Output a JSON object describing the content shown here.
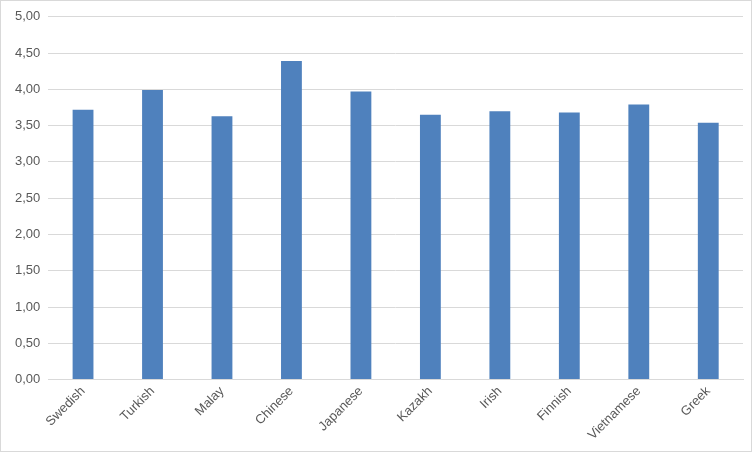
{
  "chart_data": {
    "type": "bar",
    "categories": [
      "Swedish",
      "Turkish",
      "Malay",
      "Chinese",
      "Japanese",
      "Kazakh",
      "Irish",
      "Finnish",
      "Vietnamese",
      "Greek"
    ],
    "values": [
      3.72,
      3.99,
      3.63,
      4.39,
      3.97,
      3.65,
      3.7,
      3.68,
      3.79,
      3.54
    ],
    "color": "#4f81bd",
    "ylim": [
      0,
      5
    ],
    "yticks": [
      {
        "value": 0,
        "label": "0,00"
      },
      {
        "value": 0.5,
        "label": "0,50"
      },
      {
        "value": 1,
        "label": "1,00"
      },
      {
        "value": 1.5,
        "label": "1,50"
      },
      {
        "value": 2,
        "label": "2,00"
      },
      {
        "value": 2.5,
        "label": "2,50"
      },
      {
        "value": 3,
        "label": "3,00"
      },
      {
        "value": 3.5,
        "label": "3,50"
      },
      {
        "value": 4,
        "label": "4,00"
      },
      {
        "value": 4.5,
        "label": "4,50"
      },
      {
        "value": 5,
        "label": "5,00"
      }
    ],
    "grid": true
  }
}
